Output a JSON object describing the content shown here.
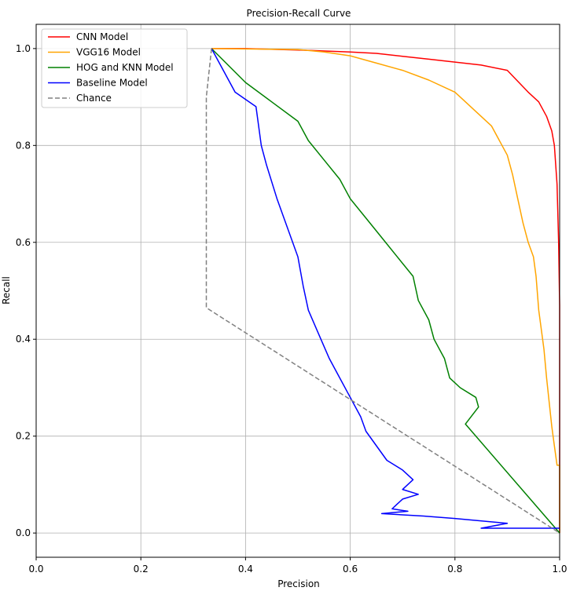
{
  "chart_data": {
    "type": "line",
    "title": "Precision-Recall Curve",
    "xlabel": "Precision",
    "ylabel": "Recall",
    "xlim": [
      0.0,
      1.0
    ],
    "ylim": [
      -0.05,
      1.05
    ],
    "xticks": [
      "0.0",
      "0.2",
      "0.4",
      "0.6",
      "0.8",
      "1.0"
    ],
    "yticks": [
      "0.0",
      "0.2",
      "0.4",
      "0.6",
      "0.8",
      "1.0"
    ],
    "grid": true,
    "legend_position": "top-left",
    "series": [
      {
        "name": "CNN Model",
        "color": "#ff0000",
        "dashed": false,
        "x": [
          0.335,
          0.4,
          0.5,
          0.6,
          0.65,
          0.7,
          0.75,
          0.8,
          0.85,
          0.9,
          0.94,
          0.96,
          0.975,
          0.985,
          0.99,
          0.995,
          0.998,
          1.0,
          1.0
        ],
        "y": [
          1.0,
          1.0,
          0.997,
          0.993,
          0.99,
          0.984,
          0.978,
          0.972,
          0.966,
          0.955,
          0.91,
          0.89,
          0.86,
          0.83,
          0.8,
          0.72,
          0.6,
          0.47,
          0.0
        ]
      },
      {
        "name": "VGG16 Model",
        "color": "#ffa500",
        "dashed": false,
        "x": [
          0.335,
          0.5,
          0.55,
          0.6,
          0.65,
          0.7,
          0.75,
          0.8,
          0.83,
          0.87,
          0.9,
          0.91,
          0.92,
          0.93,
          0.94,
          0.95,
          0.955,
          0.96,
          0.97,
          0.975,
          0.98,
          0.985,
          0.99,
          0.995,
          1.0,
          1.0
        ],
        "y": [
          1.0,
          0.998,
          0.993,
          0.985,
          0.97,
          0.955,
          0.935,
          0.91,
          0.88,
          0.84,
          0.78,
          0.74,
          0.69,
          0.64,
          0.6,
          0.57,
          0.53,
          0.46,
          0.38,
          0.32,
          0.27,
          0.22,
          0.18,
          0.14,
          0.14,
          0.0
        ]
      },
      {
        "name": "HOG and KNN Model",
        "color": "#008000",
        "dashed": false,
        "x": [
          0.335,
          0.4,
          0.45,
          0.5,
          0.52,
          0.55,
          0.58,
          0.6,
          0.63,
          0.66,
          0.69,
          0.72,
          0.73,
          0.75,
          0.76,
          0.78,
          0.79,
          0.81,
          0.84,
          0.845,
          0.82,
          1.0
        ],
        "y": [
          1.0,
          0.93,
          0.89,
          0.85,
          0.81,
          0.77,
          0.73,
          0.69,
          0.65,
          0.61,
          0.57,
          0.53,
          0.48,
          0.44,
          0.4,
          0.36,
          0.32,
          0.3,
          0.28,
          0.26,
          0.225,
          0.0
        ]
      },
      {
        "name": "Baseline Model",
        "color": "#0000ff",
        "dashed": false,
        "x": [
          0.335,
          0.38,
          0.42,
          0.43,
          0.44,
          0.46,
          0.48,
          0.5,
          0.51,
          0.52,
          0.54,
          0.56,
          0.58,
          0.6,
          0.62,
          0.63,
          0.65,
          0.67,
          0.7,
          0.72,
          0.7,
          0.73,
          0.7,
          0.69,
          0.68,
          0.71,
          0.66,
          0.74,
          0.8,
          0.9,
          0.85,
          1.0
        ],
        "y": [
          1.0,
          0.91,
          0.88,
          0.8,
          0.76,
          0.69,
          0.63,
          0.57,
          0.51,
          0.46,
          0.41,
          0.36,
          0.32,
          0.28,
          0.24,
          0.21,
          0.18,
          0.15,
          0.13,
          0.11,
          0.09,
          0.08,
          0.07,
          0.06,
          0.05,
          0.045,
          0.04,
          0.035,
          0.03,
          0.02,
          0.01,
          0.01
        ]
      },
      {
        "name": "Chance",
        "color": "#808080",
        "dashed": true,
        "x": [
          0.335,
          0.325,
          0.325,
          1.0
        ],
        "y": [
          1.0,
          0.9,
          0.465,
          0.0
        ]
      }
    ]
  }
}
